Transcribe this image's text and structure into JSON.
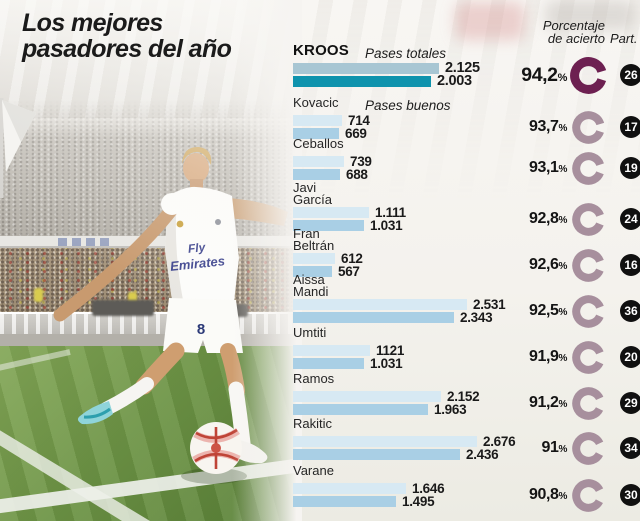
{
  "title": {
    "line1": "Los mejores",
    "line2": "pasadores del año"
  },
  "header": {
    "percent_line1": "Porcentaje",
    "percent_line2": "de acierto",
    "part": "Part."
  },
  "legend": {
    "totales": "Pases totales",
    "buenos": "Pases buenos"
  },
  "photo": {
    "sponsor_line1": "Fly",
    "sponsor_line2": "Emirates",
    "shorts_number": "8"
  },
  "colors": {
    "bar_totales": "#d7e9f3",
    "bar_buenos": "#a9cfe5",
    "kroos_bar_totales": "#a8c6d3",
    "kroos_bar_buenos": "#0f93ad",
    "donut": "#a78f9d",
    "donut_highlight": "#6d2051",
    "badge_bg": "#101010",
    "badge_text": "#ffffff"
  },
  "chart_data": {
    "type": "bar",
    "orientation": "horizontal",
    "title": "Los mejores pasadores del año",
    "series_labels": [
      "Pases totales",
      "Pases buenos"
    ],
    "value_suffix_percent": "%",
    "max_value": 2676,
    "players": [
      {
        "name_lines": [
          "KROOS"
        ],
        "totales": 2125,
        "buenos": 2003,
        "totales_label": "2.125",
        "buenos_label": "2.003",
        "pct": 94.2,
        "pct_label": "94,2",
        "part": "26",
        "highlight": true
      },
      {
        "name_lines": [
          "Kovacic"
        ],
        "totales": 714,
        "buenos": 669,
        "totales_label": "714",
        "buenos_label": "669",
        "pct": 93.7,
        "pct_label": "93,7",
        "part": "17",
        "highlight": false
      },
      {
        "name_lines": [
          "Ceballos"
        ],
        "totales": 739,
        "buenos": 688,
        "totales_label": "739",
        "buenos_label": "688",
        "pct": 93.1,
        "pct_label": "93,1",
        "part": "19",
        "highlight": false
      },
      {
        "name_lines": [
          "Javi",
          "García"
        ],
        "totales": 1111,
        "buenos": 1031,
        "totales_label": "1.111",
        "buenos_label": "1.031",
        "pct": 92.8,
        "pct_label": "92,8",
        "part": "24",
        "highlight": false
      },
      {
        "name_lines": [
          "Fran",
          "Beltrán"
        ],
        "totales": 612,
        "buenos": 567,
        "totales_label": "612",
        "buenos_label": "567",
        "pct": 92.6,
        "pct_label": "92,6",
        "part": "16",
        "highlight": false
      },
      {
        "name_lines": [
          "Aissa",
          "Mandi"
        ],
        "totales": 2531,
        "buenos": 2343,
        "totales_label": "2.531",
        "buenos_label": "2.343",
        "pct": 92.5,
        "pct_label": "92,5",
        "part": "36",
        "highlight": false
      },
      {
        "name_lines": [
          "Umtiti"
        ],
        "totales": 1121,
        "buenos": 1031,
        "totales_label": "1121",
        "buenos_label": "1.031",
        "pct": 91.9,
        "pct_label": "91,9",
        "part": "20",
        "highlight": false
      },
      {
        "name_lines": [
          "Ramos"
        ],
        "totales": 2152,
        "buenos": 1963,
        "totales_label": "2.152",
        "buenos_label": "1.963",
        "pct": 91.2,
        "pct_label": "91,2",
        "part": "29",
        "highlight": false
      },
      {
        "name_lines": [
          "Rakitic"
        ],
        "totales": 2676,
        "buenos": 2436,
        "totales_label": "2.676",
        "buenos_label": "2.436",
        "pct": 91.0,
        "pct_label": "91",
        "part": "34",
        "highlight": false
      },
      {
        "name_lines": [
          "Varane"
        ],
        "totales": 1646,
        "buenos": 1495,
        "totales_label": "1.646",
        "buenos_label": "1.495",
        "pct": 90.8,
        "pct_label": "90,8",
        "part": "30",
        "highlight": false
      }
    ]
  }
}
